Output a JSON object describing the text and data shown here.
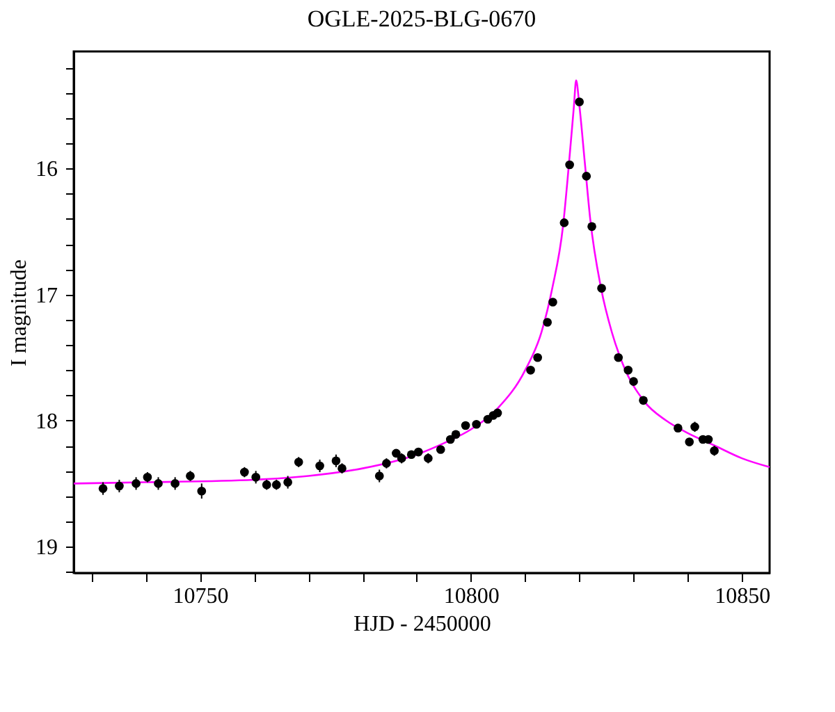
{
  "chart_data": {
    "type": "scatter",
    "title": "OGLE-2025-BLG-0670",
    "xlabel": "HJD - 2450000",
    "ylabel": "I magnitude",
    "xlim": [
      10726.7,
      10855.1
    ],
    "ylim": [
      19.21,
      15.07
    ],
    "xticks": [
      {
        "value": 10730,
        "label": null
      },
      {
        "value": 10740,
        "label": null
      },
      10750,
      {
        "value": 10760,
        "label": null
      },
      {
        "value": 10770,
        "label": null
      },
      {
        "value": 10780,
        "label": null
      },
      {
        "value": 10790,
        "label": null
      },
      10800,
      {
        "value": 10810,
        "label": null
      },
      {
        "value": 10820,
        "label": null
      },
      {
        "value": 10830,
        "label": null
      },
      {
        "value": 10840,
        "label": null
      },
      10850
    ],
    "yticks": [
      {
        "value": 15.2,
        "label": null
      },
      {
        "value": 15.4,
        "label": null
      },
      {
        "value": 15.6,
        "label": null
      },
      {
        "value": 15.8,
        "label": null
      },
      16,
      {
        "value": 16.2,
        "label": null
      },
      {
        "value": 16.4,
        "label": null
      },
      {
        "value": 16.6,
        "label": null
      },
      {
        "value": 16.8,
        "label": null
      },
      17,
      {
        "value": 17.2,
        "label": null
      },
      {
        "value": 17.4,
        "label": null
      },
      {
        "value": 17.6,
        "label": null
      },
      {
        "value": 17.8,
        "label": null
      },
      18,
      {
        "value": 18.2,
        "label": null
      },
      {
        "value": 18.4,
        "label": null
      },
      {
        "value": 18.6,
        "label": null
      },
      {
        "value": 18.8,
        "label": null
      },
      19,
      {
        "value": 19.2,
        "label": null
      }
    ],
    "grid": false,
    "series": [
      {
        "type": "line",
        "color": "#ff00ff",
        "marker": "none",
        "line_style": "solid",
        "x": [
          10726.7,
          10740,
          10760,
          10770,
          10780,
          10790,
          10795,
          10800,
          10805,
          10810,
          10813,
          10815,
          10817,
          10818,
          10819,
          10819.4,
          10820,
          10821,
          10822,
          10824,
          10826,
          10828,
          10832,
          10836,
          10840,
          10845,
          10850,
          10855.1
        ],
        "values": [
          18.5,
          18.49,
          18.47,
          18.44,
          18.38,
          18.27,
          18.18,
          18.07,
          17.9,
          17.6,
          17.3,
          16.95,
          16.45,
          16.0,
          15.5,
          15.3,
          15.5,
          15.95,
          16.4,
          16.95,
          17.3,
          17.55,
          17.85,
          18.0,
          18.1,
          18.2,
          18.3,
          18.37
        ]
      },
      {
        "color": "#000000",
        "marker": "circle",
        "x": [
          10732.1,
          10735.1,
          10738.2,
          10740.3,
          10742.3,
          10745.4,
          10748.2,
          10750.3,
          10758.2,
          10760.3,
          10762.3,
          10764.1,
          10766.2,
          10768.2,
          10772.1,
          10775.1,
          10776.2,
          10783.1,
          10784.4,
          10786.2,
          10787.2,
          10789.0,
          10790.3,
          10792.1,
          10794.4,
          10796.2,
          10797.2,
          10799.0,
          10801.0,
          10803.1,
          10804.1,
          10804.9,
          10811.0,
          10812.3,
          10814.1,
          10815.1,
          10817.2,
          10818.2,
          10820.0,
          10821.3,
          10822.3,
          10824.1,
          10827.2,
          10829.0,
          10830.0,
          10831.8,
          10838.2,
          10840.3,
          10841.3,
          10842.8,
          10843.8,
          10844.9
        ],
        "values": [
          18.54,
          18.52,
          18.5,
          18.45,
          18.5,
          18.5,
          18.44,
          18.56,
          18.41,
          18.45,
          18.51,
          18.51,
          18.49,
          18.33,
          18.36,
          18.32,
          18.38,
          18.44,
          18.34,
          18.26,
          18.3,
          18.27,
          18.25,
          18.3,
          18.23,
          18.15,
          18.11,
          18.04,
          18.03,
          17.99,
          17.96,
          17.94,
          17.6,
          17.5,
          17.22,
          17.06,
          16.43,
          15.97,
          15.47,
          16.06,
          16.46,
          16.95,
          17.5,
          17.6,
          17.69,
          17.84,
          18.06,
          18.17,
          18.05,
          18.15,
          18.15,
          18.24
        ],
        "errors": [
          0.05,
          0.05,
          0.05,
          0.04,
          0.05,
          0.05,
          0.04,
          0.06,
          0.04,
          0.05,
          0.04,
          0.04,
          0.05,
          0.04,
          0.05,
          0.05,
          0.04,
          0.05,
          0.04,
          0.03,
          0.04,
          0.03,
          0.03,
          0.04,
          0.03,
          0.03,
          0.03,
          0.03,
          0.03,
          0.03,
          0.03,
          0.03,
          0.01,
          0.01,
          0.01,
          0.01,
          0.01,
          0.01,
          0.01,
          0.01,
          0.01,
          0.01,
          0.02,
          0.02,
          0.02,
          0.02,
          0.03,
          0.03,
          0.04,
          0.03,
          0.03,
          0.04
        ]
      }
    ]
  }
}
